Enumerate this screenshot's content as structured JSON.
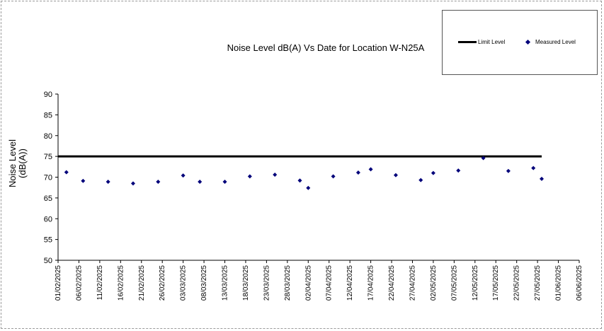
{
  "chart_data": {
    "type": "scatter",
    "title": "Noise Level dB(A) Vs Date for Location W-N25A",
    "ylabel": "Noise Level (dB(A))",
    "ylim": [
      50,
      90
    ],
    "yticks": [
      50,
      55,
      60,
      65,
      70,
      75,
      80,
      85,
      90
    ],
    "xlim": [
      "01/02/2025",
      "06/06/2025"
    ],
    "xticks": [
      "01/02/2025",
      "06/02/2025",
      "11/02/2025",
      "16/02/2025",
      "21/02/2025",
      "26/02/2025",
      "03/03/2025",
      "08/03/2025",
      "13/03/2025",
      "18/03/2025",
      "23/03/2025",
      "28/03/2025",
      "02/04/2025",
      "07/04/2025",
      "12/04/2025",
      "17/04/2025",
      "22/04/2025",
      "27/04/2025",
      "02/05/2025",
      "07/05/2025",
      "12/05/2025",
      "17/05/2025",
      "22/05/2025",
      "27/05/2025",
      "01/06/2025",
      "06/06/2025"
    ],
    "grid": false,
    "legend_position": "top-right",
    "series": [
      {
        "name": "Limit Level",
        "kind": "line",
        "color": "#000000",
        "points": [
          {
            "x": "01/02/2025",
            "y": 75
          },
          {
            "x": "28/05/2025",
            "y": 75
          }
        ]
      },
      {
        "name": "Measured Level",
        "kind": "scatter",
        "color": "#00007a",
        "points": [
          {
            "x": "03/02/2025",
            "y": 71.2
          },
          {
            "x": "07/02/2025",
            "y": 69.1
          },
          {
            "x": "13/02/2025",
            "y": 68.9
          },
          {
            "x": "19/02/2025",
            "y": 68.5
          },
          {
            "x": "25/02/2025",
            "y": 68.9
          },
          {
            "x": "03/03/2025",
            "y": 70.4
          },
          {
            "x": "07/03/2025",
            "y": 68.9
          },
          {
            "x": "13/03/2025",
            "y": 68.9
          },
          {
            "x": "19/03/2025",
            "y": 70.2
          },
          {
            "x": "25/03/2025",
            "y": 70.6
          },
          {
            "x": "31/03/2025",
            "y": 69.2
          },
          {
            "x": "02/04/2025",
            "y": 67.4
          },
          {
            "x": "08/04/2025",
            "y": 70.2
          },
          {
            "x": "14/04/2025",
            "y": 71.1
          },
          {
            "x": "17/04/2025",
            "y": 71.9
          },
          {
            "x": "23/04/2025",
            "y": 70.5
          },
          {
            "x": "29/04/2025",
            "y": 69.3
          },
          {
            "x": "02/05/2025",
            "y": 71.0
          },
          {
            "x": "08/05/2025",
            "y": 71.6
          },
          {
            "x": "14/05/2025",
            "y": 74.6
          },
          {
            "x": "20/05/2025",
            "y": 71.5
          },
          {
            "x": "26/05/2025",
            "y": 72.2
          },
          {
            "x": "28/05/2025",
            "y": 69.6
          }
        ]
      }
    ]
  }
}
